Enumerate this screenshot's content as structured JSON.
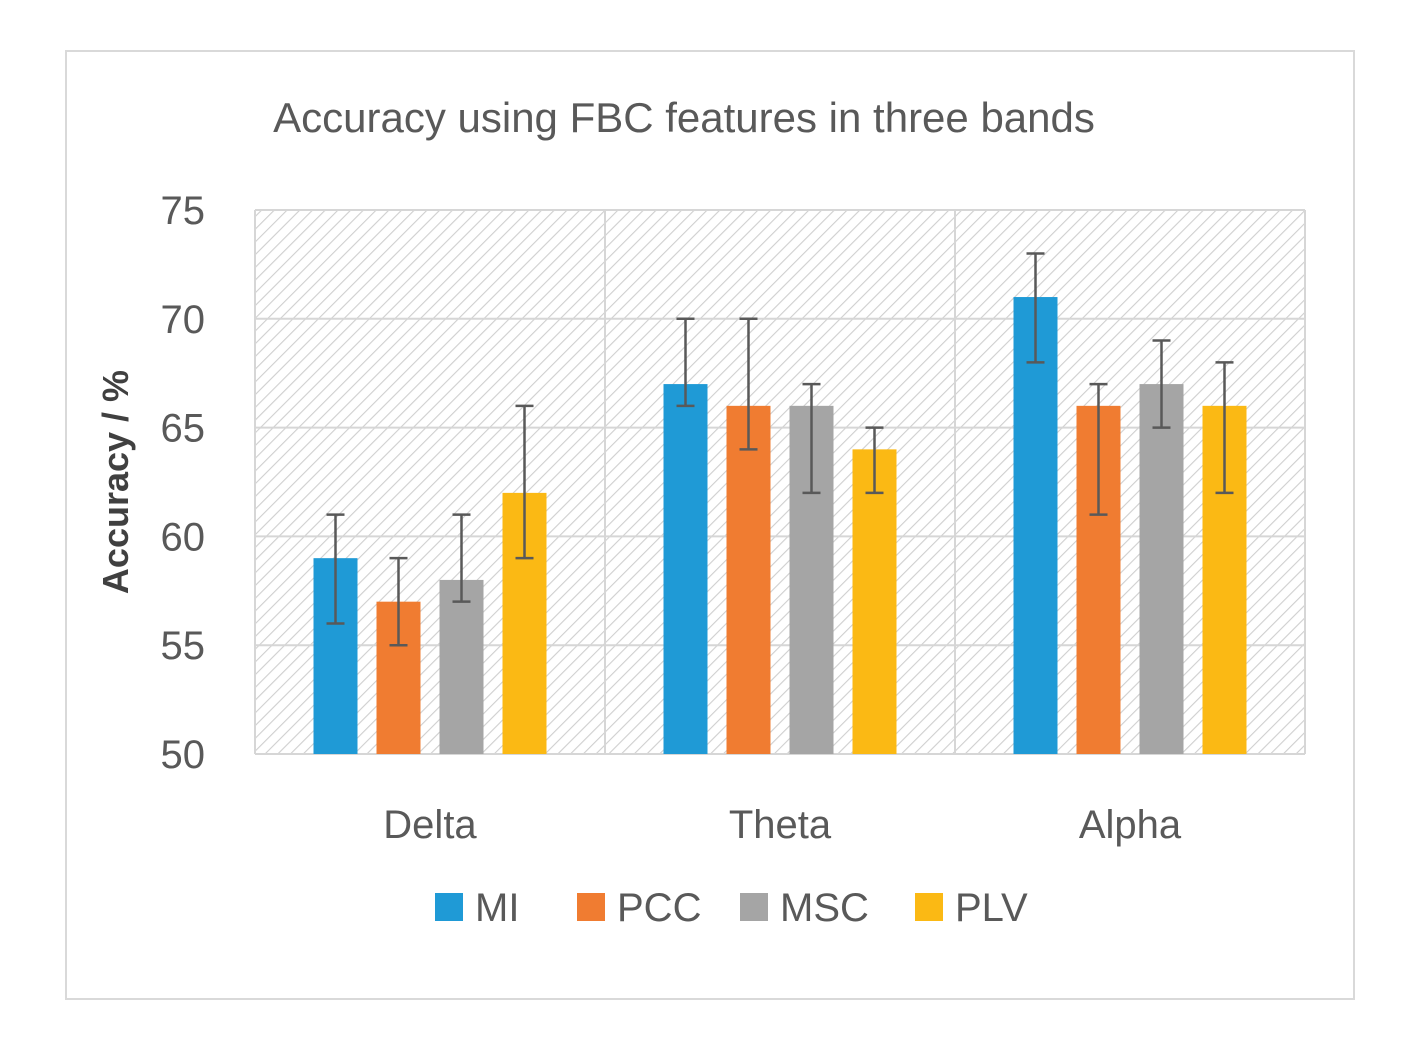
{
  "chart_data": {
    "type": "bar",
    "title": "Accuracy using FBC features in three bands",
    "xlabel": "",
    "ylabel": "Accuracy / %",
    "ylim": [
      50,
      75
    ],
    "yticks": [
      50,
      55,
      60,
      65,
      70,
      75
    ],
    "grid": true,
    "legend_position": "bottom",
    "categories": [
      "Delta",
      "Theta",
      "Alpha"
    ],
    "series": [
      {
        "name": "MI",
        "color": "#1f9ad6",
        "values": [
          59,
          67,
          71
        ],
        "err_low": [
          56,
          66,
          68
        ],
        "err_high": [
          61,
          70,
          73
        ]
      },
      {
        "name": "PCC",
        "color": "#f07c31",
        "values": [
          57,
          66,
          66
        ],
        "err_low": [
          55,
          64,
          61
        ],
        "err_high": [
          59,
          70,
          67
        ]
      },
      {
        "name": "MSC",
        "color": "#a5a5a5",
        "values": [
          58,
          66,
          67
        ],
        "err_low": [
          57,
          62,
          65
        ],
        "err_high": [
          61,
          67,
          69
        ]
      },
      {
        "name": "PLV",
        "color": "#fbb914",
        "values": [
          62,
          64,
          66
        ],
        "err_low": [
          59,
          62,
          62
        ],
        "err_high": [
          66,
          65,
          68
        ]
      }
    ]
  }
}
